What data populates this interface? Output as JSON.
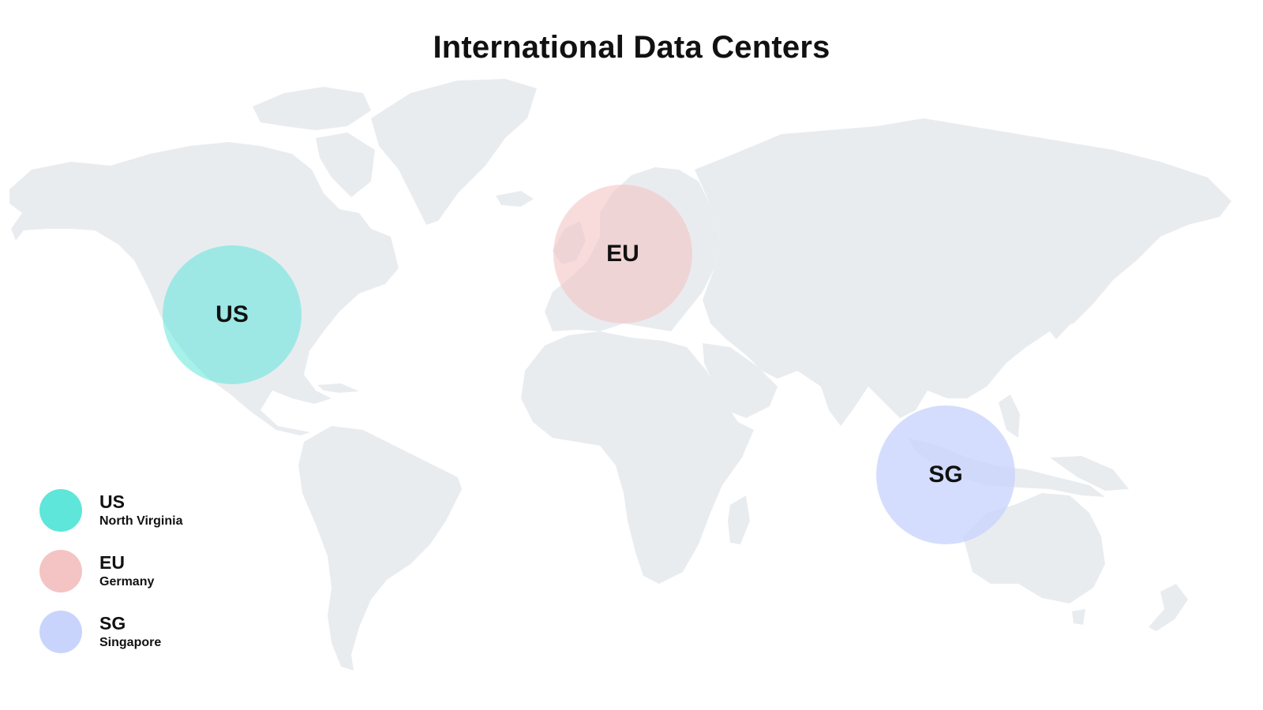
{
  "title": "International Data Centers",
  "map": {
    "land_color": "#e9ecef",
    "background": "#ffffff",
    "projection": "equirectangular world map"
  },
  "data_centers": [
    {
      "code": "US",
      "name": "North Virginia",
      "color": "#5ee6da",
      "circle_opacity": 0.55
    },
    {
      "code": "EU",
      "name": "Germany",
      "color": "#f4c4c4",
      "circle_opacity": 0.6
    },
    {
      "code": "SG",
      "name": "Singapore",
      "color": "#c9d4fd",
      "circle_opacity": 0.8
    }
  ],
  "legend": [
    {
      "code": "US",
      "label": "North Virginia",
      "color": "#5ee6da"
    },
    {
      "code": "EU",
      "label": "Germany",
      "color": "#f4c4c4"
    },
    {
      "code": "SG",
      "label": "Singapore",
      "color": "#c9d4fd"
    }
  ]
}
